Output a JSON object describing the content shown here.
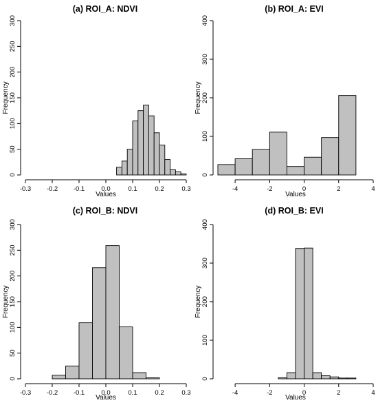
{
  "chart_data": [
    {
      "type": "bar",
      "title": "(a) ROI_A: NDVI",
      "xlabel": "Values",
      "ylabel": "Frequency",
      "xlim": [
        -0.3,
        0.3
      ],
      "ylim": [
        0,
        300
      ],
      "xticks": [
        -0.3,
        -0.2,
        -0.1,
        0.0,
        0.1,
        0.2,
        0.3
      ],
      "xtick_labels": [
        "-0.3",
        "-0.2",
        "-0.1",
        "0.0",
        "0.1",
        "0.2",
        "0.3"
      ],
      "yticks": [
        0,
        50,
        100,
        150,
        200,
        250,
        300
      ],
      "ytick_labels": [
        "0",
        "50",
        "100",
        "150",
        "200",
        "250",
        "300"
      ],
      "bins": [
        {
          "x0": 0.04,
          "x1": 0.06,
          "value": 15
        },
        {
          "x0": 0.06,
          "x1": 0.08,
          "value": 27
        },
        {
          "x0": 0.08,
          "x1": 0.1,
          "value": 50
        },
        {
          "x0": 0.1,
          "x1": 0.12,
          "value": 105
        },
        {
          "x0": 0.12,
          "x1": 0.14,
          "value": 125
        },
        {
          "x0": 0.14,
          "x1": 0.16,
          "value": 136
        },
        {
          "x0": 0.16,
          "x1": 0.18,
          "value": 115
        },
        {
          "x0": 0.18,
          "x1": 0.2,
          "value": 82
        },
        {
          "x0": 0.2,
          "x1": 0.22,
          "value": 58
        },
        {
          "x0": 0.22,
          "x1": 0.24,
          "value": 30
        },
        {
          "x0": 0.24,
          "x1": 0.26,
          "value": 10
        },
        {
          "x0": 0.26,
          "x1": 0.28,
          "value": 6
        },
        {
          "x0": 0.28,
          "x1": 0.3,
          "value": 2
        }
      ]
    },
    {
      "type": "bar",
      "title": "(b) ROI_A: EVI",
      "xlabel": "Values",
      "ylabel": "Frequency",
      "xlim": [
        -5,
        4
      ],
      "ylim": [
        0,
        400
      ],
      "xticks": [
        -4,
        -2,
        0,
        2,
        4
      ],
      "xtick_labels": [
        "-4",
        "-2",
        "0",
        "2",
        "4"
      ],
      "yticks": [
        0,
        100,
        200,
        300,
        400
      ],
      "ytick_labels": [
        "0",
        "100",
        "200",
        "300",
        "400"
      ],
      "bins": [
        {
          "x0": -5,
          "x1": -4,
          "value": 27
        },
        {
          "x0": -4,
          "x1": -3,
          "value": 42
        },
        {
          "x0": -3,
          "x1": -2,
          "value": 66
        },
        {
          "x0": -2,
          "x1": -1,
          "value": 111
        },
        {
          "x0": -1,
          "x1": 0,
          "value": 22
        },
        {
          "x0": 0,
          "x1": 1,
          "value": 46
        },
        {
          "x0": 1,
          "x1": 2,
          "value": 97
        },
        {
          "x0": 2,
          "x1": 3,
          "value": 206
        }
      ]
    },
    {
      "type": "bar",
      "title": "(c) ROI_B: NDVI",
      "xlabel": "Values",
      "ylabel": "Frequency",
      "xlim": [
        -0.3,
        0.3
      ],
      "ylim": [
        0,
        300
      ],
      "xticks": [
        -0.3,
        -0.2,
        -0.1,
        0.0,
        0.1,
        0.2,
        0.3
      ],
      "xtick_labels": [
        "-0.3",
        "-0.2",
        "-0.1",
        "0.0",
        "0.1",
        "0.2",
        "0.3"
      ],
      "yticks": [
        0,
        50,
        100,
        150,
        200,
        250,
        300
      ],
      "ytick_labels": [
        "0",
        "50",
        "100",
        "150",
        "200",
        "250",
        "300"
      ],
      "bins": [
        {
          "x0": -0.2,
          "x1": -0.15,
          "value": 7
        },
        {
          "x0": -0.15,
          "x1": -0.1,
          "value": 25
        },
        {
          "x0": -0.1,
          "x1": -0.05,
          "value": 109
        },
        {
          "x0": -0.05,
          "x1": 0.0,
          "value": 216
        },
        {
          "x0": 0.0,
          "x1": 0.05,
          "value": 259
        },
        {
          "x0": 0.05,
          "x1": 0.1,
          "value": 101
        },
        {
          "x0": 0.1,
          "x1": 0.15,
          "value": 12
        },
        {
          "x0": 0.15,
          "x1": 0.2,
          "value": 2
        }
      ]
    },
    {
      "type": "bar",
      "title": "(d) ROI_B: EVI",
      "xlabel": "Values",
      "ylabel": "Frequency",
      "xlim": [
        -5,
        4
      ],
      "ylim": [
        0,
        400
      ],
      "xticks": [
        -4,
        -2,
        0,
        2,
        4
      ],
      "xtick_labels": [
        "-4",
        "-2",
        "0",
        "2",
        "4"
      ],
      "yticks": [
        0,
        100,
        200,
        300,
        400
      ],
      "ytick_labels": [
        "0",
        "100",
        "200",
        "300",
        "400"
      ],
      "bins": [
        {
          "x0": -1.5,
          "x1": -1.0,
          "value": 3
        },
        {
          "x0": -1.0,
          "x1": -0.5,
          "value": 16
        },
        {
          "x0": -0.5,
          "x1": 0.0,
          "value": 338
        },
        {
          "x0": 0.0,
          "x1": 0.5,
          "value": 339
        },
        {
          "x0": 0.5,
          "x1": 1.0,
          "value": 16
        },
        {
          "x0": 1.0,
          "x1": 1.5,
          "value": 8
        },
        {
          "x0": 1.5,
          "x1": 2.0,
          "value": 5
        },
        {
          "x0": 2.0,
          "x1": 2.5,
          "value": 2
        },
        {
          "x0": 2.5,
          "x1": 3.0,
          "value": 2
        }
      ]
    }
  ],
  "colors": {
    "bar_fill": "#c0c0c0",
    "bar_stroke": "#000000",
    "axis": "#000000"
  }
}
